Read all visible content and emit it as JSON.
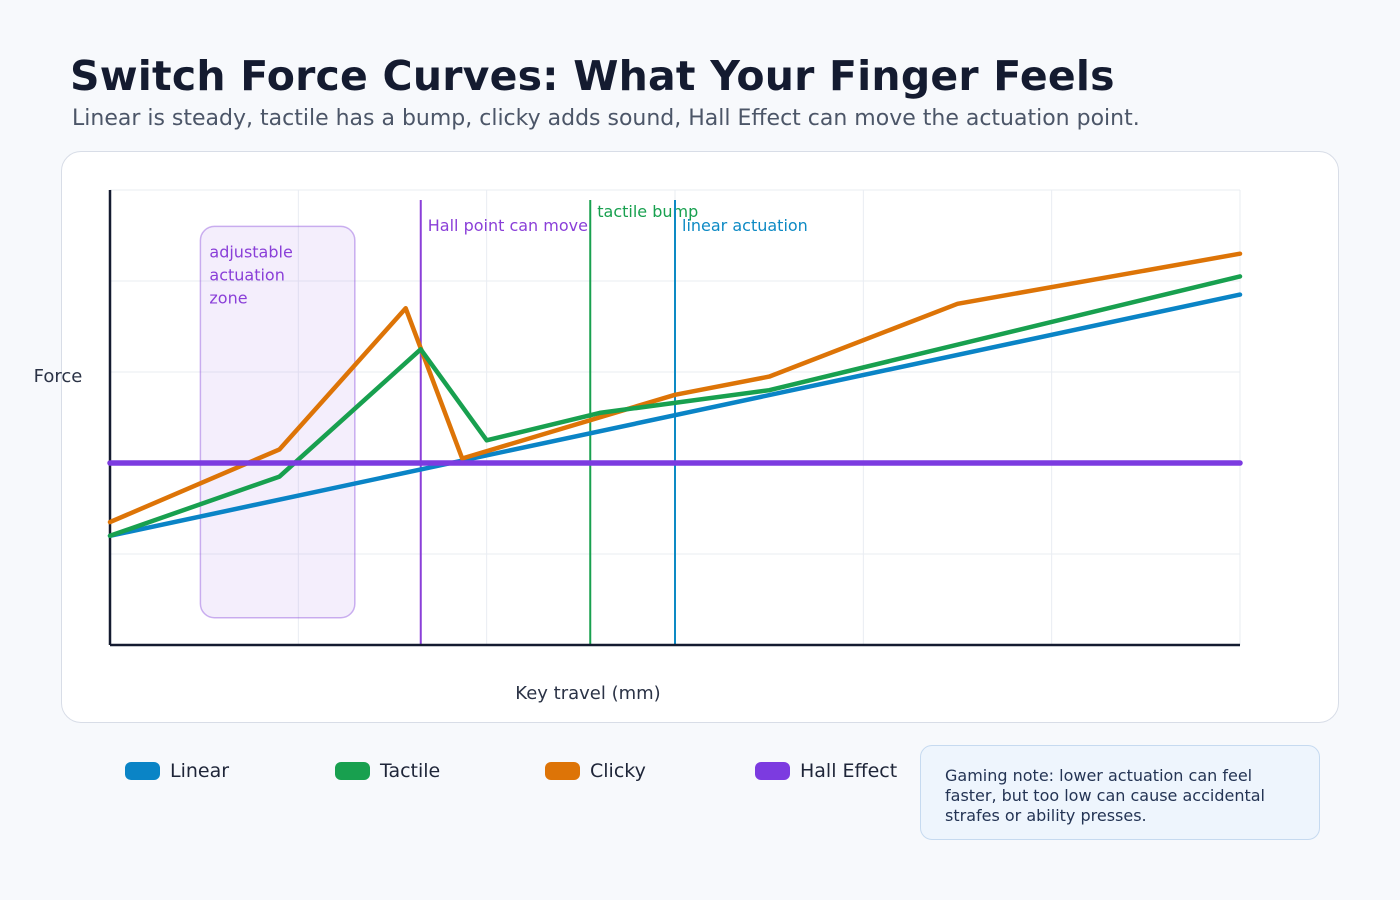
{
  "header": {
    "title": "Switch Force Curves: What Your Finger Feels",
    "subtitle": "Linear is steady, tactile has a bump, clicky adds sound, Hall Effect can move the actuation point."
  },
  "chart_data": {
    "type": "line",
    "xlabel": "Key travel (mm)",
    "ylabel": "Force",
    "xlim": [
      0,
      6
    ],
    "ylim": [
      0,
      100
    ],
    "grid": true,
    "x_ticks_labeled": false,
    "y_ticks_labeled": false,
    "series": [
      {
        "name": "Linear",
        "color": "#0a84c6",
        "x": [
          0,
          6
        ],
        "y": [
          24,
          77
        ]
      },
      {
        "name": "Tactile",
        "color": "#18a04f",
        "x": [
          0,
          0.9,
          1.65,
          2.0,
          2.6,
          3.5,
          6
        ],
        "y": [
          24,
          37,
          65,
          45,
          51,
          56,
          81
        ]
      },
      {
        "name": "Clicky",
        "color": "#dd7407",
        "x": [
          0,
          0.9,
          1.57,
          1.87,
          3.0,
          3.5,
          4.5,
          6
        ],
        "y": [
          27,
          43,
          74,
          41,
          55,
          59,
          75,
          86
        ]
      },
      {
        "name": "Hall Effect",
        "color": "#7c3be0",
        "x": [
          0,
          6
        ],
        "y": [
          40,
          40
        ]
      }
    ],
    "annotations": {
      "zone": {
        "label": "adjustable actuation zone",
        "label_lines": [
          "adjustable",
          "actuation",
          "zone"
        ],
        "x_range": [
          0.48,
          1.3
        ],
        "y_range": [
          6,
          92
        ],
        "color": "#8f55de"
      },
      "vlines": [
        {
          "label": "Hall point can move",
          "x": 1.65,
          "color": "#8a3fd8"
        },
        {
          "label": "tactile bump",
          "x": 2.55,
          "color": "#18a04f"
        },
        {
          "label": "linear actuation",
          "x": 3.0,
          "color": "#0d8ac4"
        }
      ]
    }
  },
  "legend": {
    "items": [
      {
        "label": "Linear",
        "color": "#0a84c6"
      },
      {
        "label": "Tactile",
        "color": "#18a04f"
      },
      {
        "label": "Clicky",
        "color": "#dd7407"
      },
      {
        "label": "Hall Effect",
        "color": "#7c3be0"
      }
    ]
  },
  "note": {
    "text": "Gaming note: lower actuation can feel faster, but too low can cause accidental strafes or ability presses."
  }
}
